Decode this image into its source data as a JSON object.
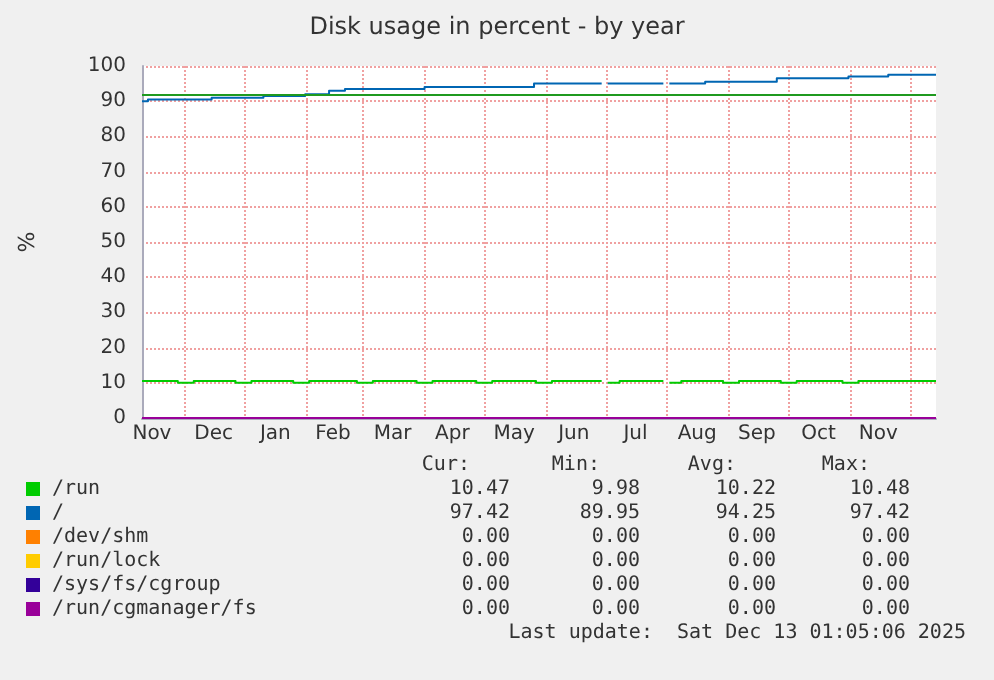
{
  "chart_data": {
    "type": "step",
    "title": "Disk usage in percent - by year",
    "ylabel": "%",
    "series": [
      {
        "name": "/run",
        "color": "#00cc00",
        "x": [
          "2024-11-10",
          "2024-11-28",
          "2024-12-06",
          "2024-12-27",
          "2025-01-04",
          "2025-01-25",
          "2025-02-02",
          "2025-02-26",
          "2025-03-06",
          "2025-03-28",
          "2025-04-05",
          "2025-04-27",
          "2025-05-05",
          "2025-05-27",
          "2025-06-04",
          "2025-06-29",
          "2025-07-02",
          "2025-07-08",
          "2025-07-30",
          "2025-08-02",
          "2025-08-08",
          "2025-08-29",
          "2025-09-06",
          "2025-09-27",
          "2025-10-05",
          "2025-10-28",
          "2025-11-05",
          "2025-12-14"
        ],
        "values": [
          10.5,
          10,
          10.5,
          10,
          10.5,
          10,
          10.5,
          10,
          10.5,
          10,
          10.5,
          10,
          10.5,
          10,
          10.5,
          null,
          10,
          10.5,
          null,
          10,
          10.5,
          10,
          10.5,
          10,
          10.5,
          10,
          10.5,
          10.5
        ]
      },
      {
        "name": "/",
        "color": "#0066b3",
        "x": [
          "2024-11-10",
          "2024-11-13",
          "2024-12-15",
          "2025-01-10",
          "2025-01-31",
          "2025-02-12",
          "2025-02-20",
          "2025-04-01",
          "2025-05-26",
          "2025-06-29",
          "2025-07-02",
          "2025-07-30",
          "2025-08-02",
          "2025-08-20",
          "2025-09-25",
          "2025-10-31",
          "2025-11-20",
          "2025-12-14"
        ],
        "values": [
          90,
          90.5,
          91,
          91.5,
          92,
          93,
          93.5,
          94,
          95,
          null,
          95,
          null,
          95,
          95.5,
          96.5,
          97,
          97.5,
          97.5
        ]
      },
      {
        "name": "/dev/shm",
        "color": "#ff8000"
      },
      {
        "name": "/run/lock",
        "color": "#ffcc00"
      },
      {
        "name": "/sys/fs/cgroup",
        "color": "#330099"
      },
      {
        "name": "/run/cgmanager/fs",
        "color": "#990099",
        "x": [
          "2024-11-10",
          "2025-12-14"
        ],
        "values": [
          0,
          0
        ]
      }
    ],
    "ref_lines": [
      {
        "axis": "y",
        "value": 92,
        "color": "#1f9a1f"
      }
    ],
    "xlim": [
      "2024-11-10",
      "2025-12-14"
    ],
    "xticks": [
      {
        "value": "2024-11-15",
        "label": "Nov"
      },
      {
        "value": "2024-12-01",
        "label": null
      },
      {
        "value": "2024-12-16",
        "label": "Dec"
      },
      {
        "value": "2025-01-01",
        "label": null
      },
      {
        "value": "2025-01-16",
        "label": "Jan"
      },
      {
        "value": "2025-02-01",
        "label": null
      },
      {
        "value": "2025-02-14",
        "label": "Feb"
      },
      {
        "value": "2025-03-01",
        "label": null
      },
      {
        "value": "2025-03-16",
        "label": "Mar"
      },
      {
        "value": "2025-04-01",
        "label": null
      },
      {
        "value": "2025-04-15",
        "label": "Apr"
      },
      {
        "value": "2025-05-01",
        "label": null
      },
      {
        "value": "2025-05-16",
        "label": "May"
      },
      {
        "value": "2025-06-01",
        "label": null
      },
      {
        "value": "2025-06-15",
        "label": "Jun"
      },
      {
        "value": "2025-07-01",
        "label": null
      },
      {
        "value": "2025-07-16",
        "label": "Jul"
      },
      {
        "value": "2025-08-01",
        "label": null
      },
      {
        "value": "2025-08-16",
        "label": "Aug"
      },
      {
        "value": "2025-09-01",
        "label": null
      },
      {
        "value": "2025-09-15",
        "label": "Sep"
      },
      {
        "value": "2025-10-01",
        "label": null
      },
      {
        "value": "2025-10-16",
        "label": "Oct"
      },
      {
        "value": "2025-11-01",
        "label": null
      },
      {
        "value": "2025-11-15",
        "label": "Nov"
      },
      {
        "value": "2025-12-01",
        "label": null
      }
    ],
    "ylim": [
      0,
      100
    ],
    "yticks": [
      0,
      10,
      20,
      30,
      40,
      50,
      60,
      70,
      80,
      90,
      100
    ],
    "grid": true,
    "legend": "bottom",
    "annotations": [
      "Cur:",
      "Min:",
      "Avg:",
      "Max:",
      "10.47",
      "9.98",
      "10.22",
      "10.48",
      "97.42",
      "89.95",
      "94.25",
      "97.42",
      "0.00",
      "0.00",
      "0.00",
      "0.00",
      "0.00",
      "0.00",
      "0.00",
      "0.00",
      "0.00",
      "0.00",
      "0.00",
      "0.00",
      "0.00",
      "0.00",
      "0.00",
      "0.00",
      "Last update:  Sat Dec 13 01:05:06 2025"
    ]
  }
}
